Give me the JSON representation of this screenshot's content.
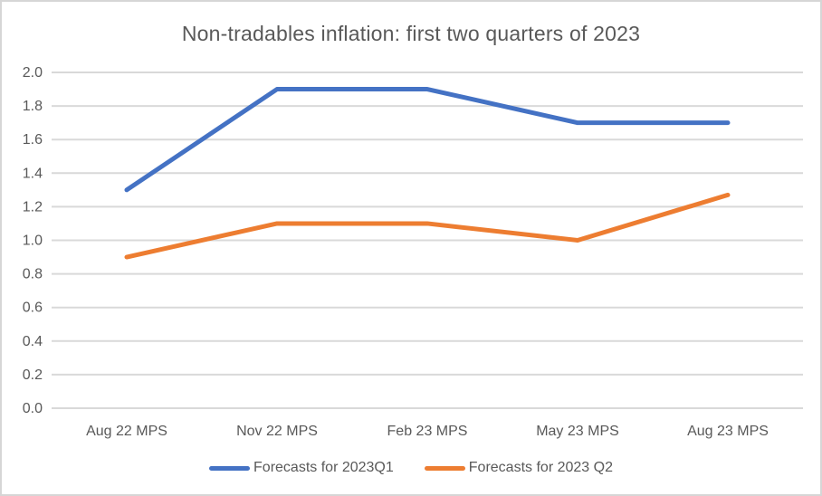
{
  "chart_data": {
    "type": "line",
    "title": "Non-tradables inflation: first two quarters of 2023",
    "categories": [
      "Aug 22 MPS",
      "Nov 22 MPS",
      "Feb 23 MPS",
      "May 23 MPS",
      "Aug 23 MPS"
    ],
    "series": [
      {
        "name": "Forecasts for 2023Q1",
        "values": [
          1.3,
          1.9,
          1.9,
          1.7,
          1.7
        ],
        "color": "#4472C4"
      },
      {
        "name": "Forecasts for 2023 Q2",
        "values": [
          0.9,
          1.1,
          1.1,
          1.0,
          1.27
        ],
        "color": "#ED7D31"
      }
    ],
    "ylim": [
      0.0,
      2.0
    ],
    "ytick_step": 0.2,
    "ytick_labels": [
      "0.0",
      "0.2",
      "0.4",
      "0.6",
      "0.8",
      "1.0",
      "1.2",
      "1.4",
      "1.6",
      "1.8",
      "2.0"
    ],
    "xlabel": "",
    "ylabel": "",
    "grid": "horizontal",
    "legend_position": "bottom"
  },
  "theme": {
    "text_color": "#595959",
    "gridline_color": "#D9D9D9",
    "background": "#FFFFFF",
    "border_color": "#D6D6D6",
    "line_width": 5
  }
}
